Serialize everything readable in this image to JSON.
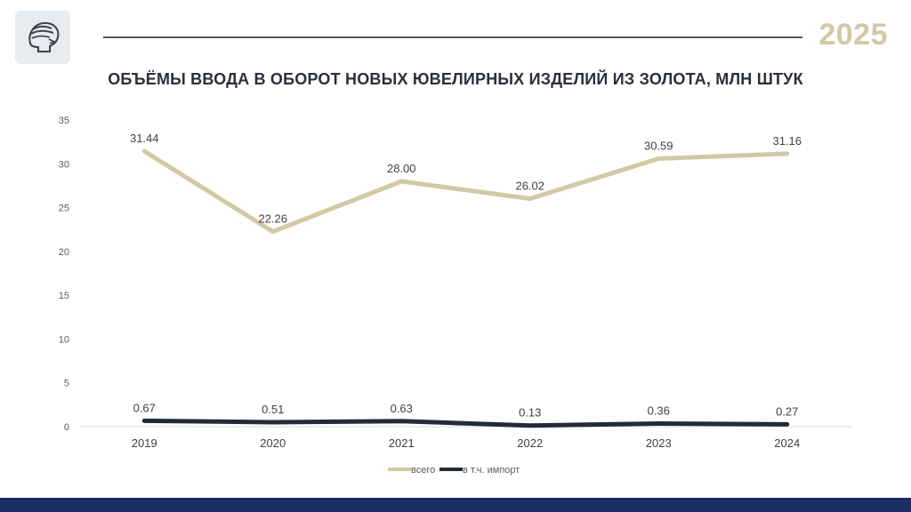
{
  "header": {
    "year": "2025"
  },
  "chart_data": {
    "type": "line",
    "title": "ОБЪЁМЫ ВВОДА В ОБОРОТ НОВЫХ ЮВЕЛИРНЫХ ИЗДЕЛИЙ ИЗ ЗОЛОТА, МЛН ШТУК",
    "categories": [
      "2019",
      "2020",
      "2021",
      "2022",
      "2023",
      "2024"
    ],
    "series": [
      {
        "name": "всего",
        "color": "#d2c9a4",
        "values": [
          31.44,
          22.26,
          28.0,
          26.02,
          30.59,
          31.16
        ],
        "labels": [
          "31.44",
          "22.26",
          "28.00",
          "26.02",
          "30.59",
          "31.16"
        ]
      },
      {
        "name": "в т.ч. импорт",
        "color": "#232a3a",
        "values": [
          0.67,
          0.51,
          0.63,
          0.13,
          0.36,
          0.27
        ],
        "labels": [
          "0.67",
          "0.51",
          "0.63",
          "0.13",
          "0.36",
          "0.27"
        ]
      }
    ],
    "yticks": [
      "0",
      "5",
      "10",
      "15",
      "20",
      "25",
      "30",
      "35"
    ],
    "ylim": [
      0,
      35
    ],
    "grid": false,
    "legend": "bottom-center"
  },
  "icons": {
    "logo": "mercury-head-logo"
  }
}
